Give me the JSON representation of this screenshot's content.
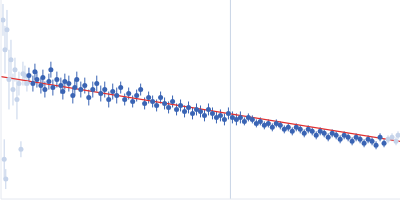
{
  "chart_data": {
    "type": "scatter",
    "xlim": [
      0,
      100
    ],
    "ylim": [
      0,
      100
    ],
    "xticks": [],
    "yticks": [],
    "tick_labels": false,
    "grid": false,
    "series": [
      {
        "color": "#c5d3ea",
        "marker": "circle",
        "x": [
          0.5,
          0.8,
          1,
          1.2,
          1.5,
          2,
          2.5,
          3,
          3.5,
          4,
          4.5,
          5,
          5.5,
          6,
          6.5,
          97,
          98,
          99,
          99.5
        ],
        "y": [
          90,
          20,
          75,
          10,
          85,
          60,
          70,
          55,
          65,
          50,
          58,
          25,
          63,
          62,
          58,
          30,
          31,
          29,
          32
        ],
        "errors": [
          8,
          10,
          12,
          5,
          10,
          15,
          10,
          8,
          6,
          10,
          6,
          4,
          6,
          5,
          4,
          2,
          2,
          2,
          2
        ]
      },
      {
        "color": "#3a64b4",
        "marker": "circle",
        "x": [
          7,
          8,
          8.5,
          9,
          10,
          10.5,
          11,
          12,
          12.5,
          13,
          14,
          15,
          15.5,
          16,
          17,
          18,
          18.5,
          19,
          20,
          21,
          22,
          23,
          24,
          25,
          26,
          27,
          28,
          29,
          30,
          31,
          32,
          33,
          34,
          35,
          36,
          37,
          38,
          39,
          40,
          41,
          42,
          43,
          44,
          45,
          46,
          47,
          48,
          49,
          50,
          51,
          52,
          53,
          54,
          55,
          56,
          57,
          58,
          59,
          60,
          61,
          62,
          63,
          64,
          65,
          66,
          67,
          68,
          69,
          70,
          71,
          72,
          73,
          74,
          75,
          76,
          77,
          78,
          79,
          80,
          81,
          82,
          83,
          84,
          85,
          86,
          87,
          88,
          89,
          90,
          91,
          92,
          93,
          94,
          95,
          96
        ],
        "y": [
          62,
          58,
          64,
          60,
          57,
          61,
          55,
          59,
          65,
          56,
          60,
          57,
          54,
          59,
          58,
          52,
          56,
          60,
          55,
          57,
          51,
          55,
          58,
          53,
          55,
          50,
          54,
          52,
          56,
          50,
          53,
          49,
          52,
          55,
          48,
          51,
          49,
          47,
          51,
          48,
          46,
          49,
          45,
          47,
          44,
          46,
          43,
          45,
          44,
          42,
          45,
          43,
          41,
          42,
          40,
          43,
          41,
          40,
          41,
          39,
          41,
          40,
          38,
          39,
          37,
          38,
          36,
          38,
          37,
          35,
          36,
          34,
          36,
          35,
          33,
          35,
          34,
          32,
          34,
          33,
          31,
          33,
          32,
          30,
          32,
          31,
          29,
          31,
          30,
          28,
          30,
          29,
          27,
          31,
          28
        ],
        "errors": [
          4,
          4,
          4,
          4,
          4,
          4,
          4,
          4,
          4,
          4,
          4,
          4,
          4,
          4,
          4,
          4,
          4,
          4,
          4,
          4,
          4,
          4,
          4,
          4,
          4,
          4,
          4,
          4,
          3,
          3,
          3,
          3,
          3,
          3,
          3,
          3,
          3,
          3,
          3,
          3,
          3,
          3,
          3,
          3,
          3,
          3,
          3,
          3,
          3,
          3,
          3,
          3,
          3,
          3,
          3,
          3,
          3,
          3,
          3,
          2,
          2,
          2,
          2,
          2,
          2,
          2,
          2,
          2,
          2,
          2,
          2,
          2,
          2,
          2,
          2,
          2,
          2,
          2,
          2,
          2,
          2,
          2,
          2,
          2,
          2,
          2,
          2,
          2,
          2,
          2,
          2,
          2,
          2,
          2,
          2
        ]
      }
    ],
    "fit_line": {
      "x": [
        0,
        100
      ],
      "y": [
        61.5,
        29
      ],
      "color": "#e03030"
    },
    "vertical_line": {
      "x": 57.5,
      "color": "#c8d4e6"
    }
  }
}
